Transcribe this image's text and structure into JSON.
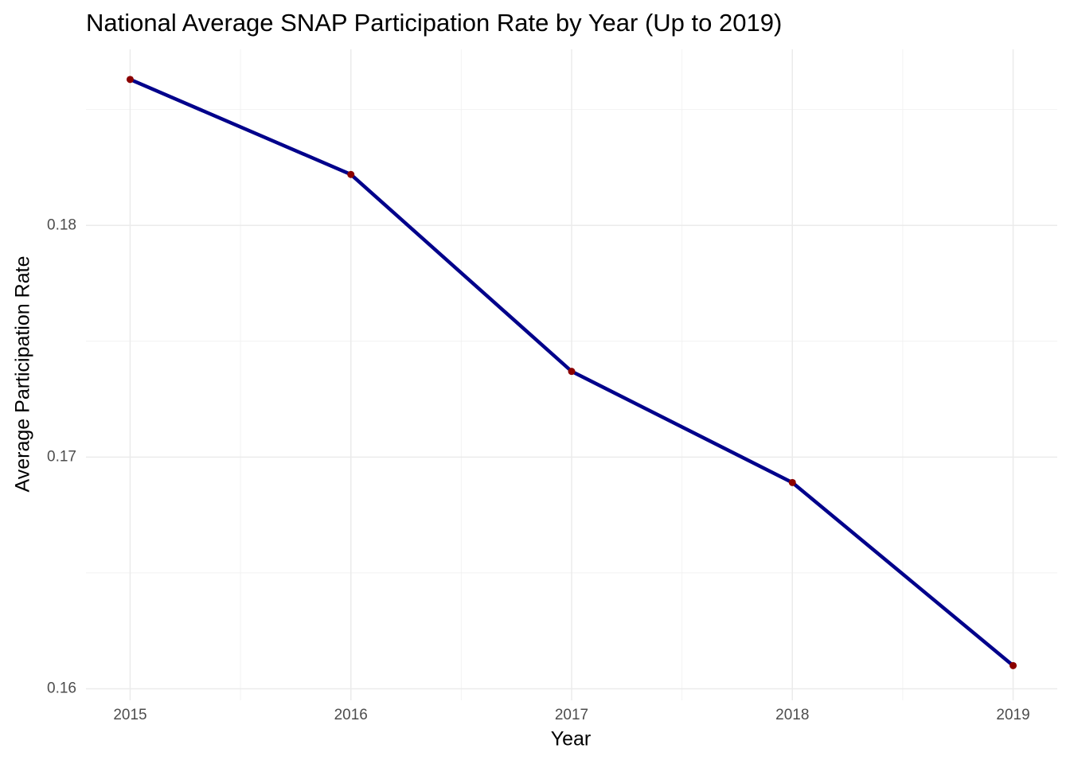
{
  "chart_data": {
    "type": "line",
    "title": "National Average SNAP Participation Rate by Year (Up to 2019)",
    "x_label": "Year",
    "y_label": "Average Participation Rate",
    "x": [
      2015,
      2016,
      2017,
      2018,
      2019
    ],
    "series": [
      {
        "name": "Average Participation Rate",
        "color": "#00008b",
        "point_color": "#8b0000",
        "values": [
          0.1863,
          0.1822,
          0.1737,
          0.1689,
          0.161
        ]
      }
    ],
    "xlim": [
      2014.8,
      2019.2
    ],
    "xticks": [
      2015,
      2016,
      2017,
      2018,
      2019
    ],
    "ylim": [
      0.1595,
      0.1876
    ],
    "yticks": [
      0.16,
      0.17,
      0.18
    ],
    "grid": true,
    "legend": false
  }
}
